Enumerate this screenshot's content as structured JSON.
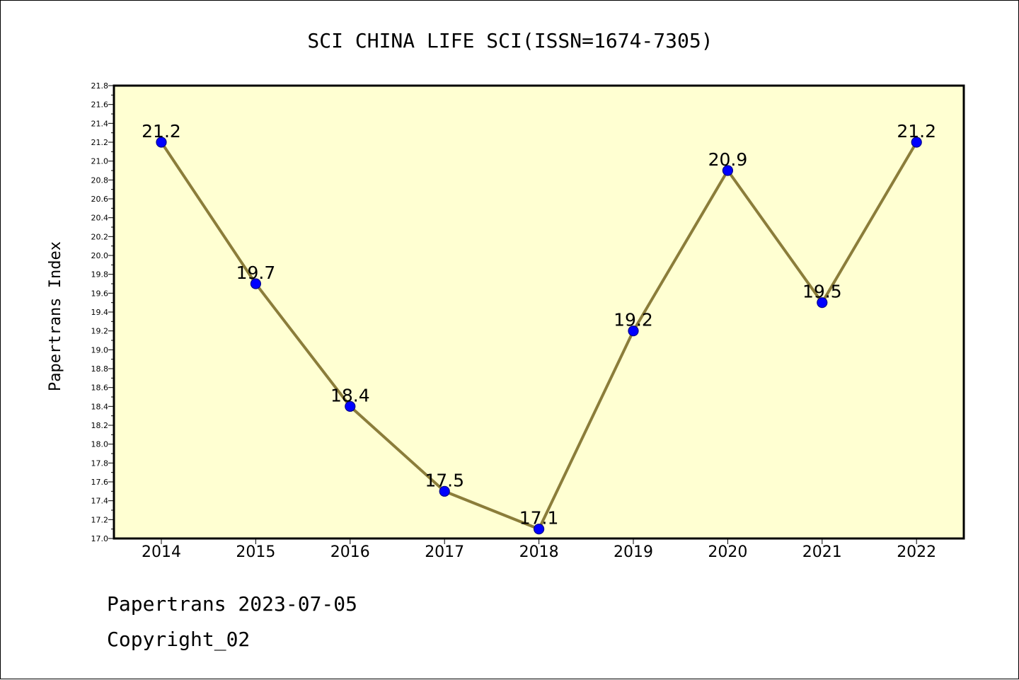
{
  "chart_data": {
    "type": "line",
    "title": "SCI CHINA LIFE SCI(ISSN=1674-7305)",
    "ylabel": "Papertrans Index",
    "xlabel": "",
    "categories": [
      "2014",
      "2015",
      "2016",
      "2017",
      "2018",
      "2019",
      "2020",
      "2021",
      "2022"
    ],
    "series": [
      {
        "values": [
          21.2,
          19.7,
          18.4,
          17.5,
          17.1,
          19.2,
          20.9,
          19.5,
          21.2
        ],
        "labels": [
          "21.2",
          "19.7",
          "18.4",
          "17.5",
          "17.1",
          "19.2",
          "20.9",
          "19.5",
          "21.2"
        ]
      }
    ],
    "ylim": [
      17.0,
      21.8
    ],
    "yticks": [
      "17.0",
      "17.2",
      "17.4",
      "17.6",
      "17.8",
      "18.0",
      "18.2",
      "18.4",
      "18.6",
      "18.8",
      "19.0",
      "19.2",
      "19.4",
      "19.6",
      "19.8",
      "20.0",
      "20.2",
      "20.4",
      "20.6",
      "20.8",
      "21.0",
      "21.2",
      "21.4",
      "21.6",
      "21.8"
    ],
    "grid": false,
    "legend": "none",
    "colors": {
      "plot_background": "#ffffd2",
      "line": "#8b7d3a",
      "marker_fill": "#0000ff",
      "marker_edge": "#00008b",
      "axes": "#000000"
    }
  },
  "footer": {
    "date_line": "Papertrans 2023-07-05",
    "copyright_line": "Copyright_02"
  }
}
